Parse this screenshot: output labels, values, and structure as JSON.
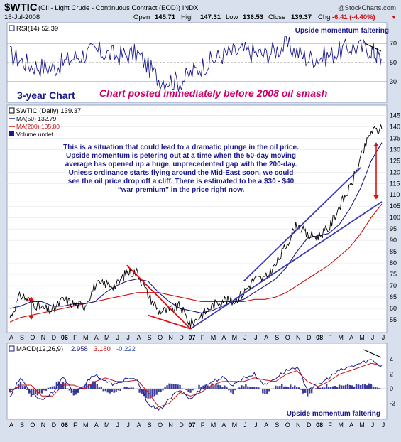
{
  "header": {
    "symbol": "$WTIC",
    "description": "(Oil - Light Crude - Continuous Contract (EOD)) INDX",
    "brand": "@StockCharts.com",
    "date": "15-Jul-2008",
    "open_label": "Open",
    "open": "145.71",
    "high_label": "High",
    "high": "147.31",
    "low_label": "Low",
    "low": "136.53",
    "close_label": "Close",
    "close": "139.37",
    "chg_label": "Chg",
    "chg": "-6.41 (-4.40%)",
    "chg_arrow": "▼"
  },
  "annotations": {
    "three_year": "3-year Chart",
    "posted": "Chart posted immediately before 2008 oil smash",
    "upside_top": "Upside momentum faltering",
    "upside_bottom": "Upside momentum faltering",
    "commentary": [
      "This is a situation that could lead to a dramatic plunge in the oil price.",
      "Upside momentum is petering out at a time when the 50-day moving",
      "average has opened up a huge, unprecedented gap with the 200-day.",
      "Unless ordinance starts flying around the Mid-East soon, we could",
      "see the oil price drop off a cliff. There is estimated to be a $30 - $40",
      "“war premium” in the price right now."
    ]
  },
  "colors": {
    "panel_bg": "#ffffff",
    "frame_bg": "#d8e0ee",
    "price": "#000000",
    "ma50": "#1a1a8c",
    "ma200": "#cc1111",
    "trend_blue": "#3a3ab8",
    "trend_red": "#dd1111",
    "text_blue": "#1a1a8c",
    "text_magenta": "#cc0066",
    "macd": "#1a1a8c",
    "signal": "#cc1111",
    "histogram": "#1a1a8c",
    "rsi_line": "#1a1a8c"
  },
  "chart_data": [
    {
      "type": "line",
      "panel": "rsi",
      "legend": [
        "RSI(14) 52.39"
      ],
      "ylim": [
        10,
        90
      ],
      "yticks": [
        "70",
        "50",
        "30"
      ],
      "reference_lines": [
        70,
        50,
        30
      ],
      "x": [
        "2005-08",
        "2005-10",
        "2005-12",
        "2006-02",
        "2006-04",
        "2006-06",
        "2006-08",
        "2006-10",
        "2006-12",
        "2007-02",
        "2007-04",
        "2007-06",
        "2007-08",
        "2007-10",
        "2007-12",
        "2008-02",
        "2008-04",
        "2008-06",
        "2008-07"
      ],
      "series": [
        {
          "name": "RSI(14)",
          "values": [
            58,
            47,
            44,
            55,
            62,
            57,
            59,
            33,
            30,
            46,
            58,
            62,
            58,
            68,
            54,
            57,
            66,
            64,
            52
          ]
        }
      ]
    },
    {
      "type": "line",
      "panel": "price",
      "legend": [
        "$WTIC (Daily) 139.37",
        "MA(50) 132.79",
        "MA(200) 105.80",
        "Volume undef"
      ],
      "ylim": [
        50,
        147
      ],
      "yticks": [
        "145",
        "140",
        "135",
        "130",
        "125",
        "120",
        "115",
        "110",
        "105",
        "100",
        "95",
        "90",
        "85",
        "80",
        "75",
        "70",
        "65",
        "60",
        "55"
      ],
      "x": [
        "2005-08",
        "2005-09",
        "2005-10",
        "2005-11",
        "2005-12",
        "2006-01",
        "2006-02",
        "2006-03",
        "2006-04",
        "2006-05",
        "2006-06",
        "2006-07",
        "2006-08",
        "2006-09",
        "2006-10",
        "2006-11",
        "2006-12",
        "2007-01",
        "2007-02",
        "2007-03",
        "2007-04",
        "2007-05",
        "2007-06",
        "2007-07",
        "2007-08",
        "2007-09",
        "2007-10",
        "2007-11",
        "2007-12",
        "2008-01",
        "2008-02",
        "2008-03",
        "2008-04",
        "2008-05",
        "2008-06",
        "2008-07"
      ],
      "series": [
        {
          "name": "$WTIC",
          "values": [
            56,
            66,
            63,
            60,
            59,
            64,
            62,
            61,
            70,
            71,
            70,
            76,
            76,
            66,
            59,
            59,
            61,
            53,
            57,
            61,
            64,
            63,
            67,
            73,
            73,
            79,
            88,
            97,
            92,
            92,
            95,
            105,
            113,
            126,
            138,
            139
          ]
        },
        {
          "name": "MA(50)",
          "values": [
            60,
            61,
            63,
            63,
            61,
            61,
            62,
            62,
            63,
            67,
            70,
            72,
            73,
            72,
            67,
            63,
            60,
            59,
            58,
            59,
            61,
            63,
            64,
            67,
            70,
            73,
            78,
            85,
            91,
            92,
            93,
            97,
            104,
            113,
            125,
            133
          ]
        },
        {
          "name": "MA(200)",
          "values": [
            54,
            56,
            57,
            58,
            59,
            60,
            61,
            62,
            63,
            64,
            65,
            66,
            67,
            67,
            67,
            66,
            65,
            64,
            63,
            63,
            63,
            63,
            63,
            64,
            64,
            65,
            67,
            70,
            73,
            76,
            79,
            83,
            87,
            93,
            100,
            106
          ]
        }
      ],
      "trendlines": [
        {
          "color": "blue",
          "from": [
            "2007-01",
            51
          ],
          "to": [
            "2008-07",
            107
          ]
        },
        {
          "color": "blue",
          "from": [
            "2007-06",
            72
          ],
          "to": [
            "2008-05",
            122
          ]
        },
        {
          "color": "red",
          "from": [
            "2006-07",
            79
          ],
          "to": [
            "2007-01",
            51
          ]
        },
        {
          "color": "red",
          "from": [
            "2006-09",
            57
          ],
          "to": [
            "2007-01",
            51
          ]
        }
      ],
      "arrows": [
        {
          "color": "red",
          "x": "2005-10",
          "from": 65,
          "to": 55
        },
        {
          "color": "red",
          "x": "2008-07",
          "from": 133,
          "to": 108
        }
      ]
    },
    {
      "type": "line",
      "panel": "macd",
      "legend": [
        "MACD(12,26,9)",
        "2.958",
        "3.180",
        "-0.222"
      ],
      "ylim": [
        -4,
        5
      ],
      "yticks": [
        "4",
        "2",
        "0",
        "-2"
      ],
      "x": [
        "2005-08",
        "2005-09",
        "2005-10",
        "2005-11",
        "2005-12",
        "2006-01",
        "2006-02",
        "2006-03",
        "2006-04",
        "2006-05",
        "2006-06",
        "2006-07",
        "2006-08",
        "2006-09",
        "2006-10",
        "2006-11",
        "2006-12",
        "2007-01",
        "2007-02",
        "2007-03",
        "2007-04",
        "2007-05",
        "2007-06",
        "2007-07",
        "2007-08",
        "2007-09",
        "2007-10",
        "2007-11",
        "2007-12",
        "2008-01",
        "2008-02",
        "2008-03",
        "2008-04",
        "2008-05",
        "2008-06",
        "2008-07"
      ],
      "series": [
        {
          "name": "MACD",
          "values": [
            -1,
            1.5,
            -0.5,
            -1.5,
            -0.5,
            1.5,
            -0.5,
            0.5,
            2,
            1,
            0.5,
            1.5,
            1,
            -2,
            -3,
            -1.5,
            0,
            -1.5,
            0,
            1,
            1.5,
            0.5,
            1.5,
            2,
            0.5,
            1.5,
            2.5,
            3,
            0,
            0.5,
            1.5,
            2.5,
            3,
            3.5,
            4,
            3
          ]
        },
        {
          "name": "Signal",
          "values": [
            -0.5,
            0.5,
            0.5,
            -1,
            -1,
            0.5,
            0.5,
            0,
            1,
            1.5,
            1,
            1,
            1.2,
            -0.5,
            -2.5,
            -2,
            -0.5,
            -1,
            -0.5,
            0.5,
            1,
            1,
            1,
            1.5,
            1.2,
            1,
            2,
            2.5,
            1,
            0.3,
            1,
            2,
            2.5,
            3,
            3.5,
            3.2
          ]
        },
        {
          "name": "Histogram",
          "values": [
            -0.5,
            1,
            -1,
            -0.5,
            0.5,
            1,
            -1,
            0.5,
            1,
            -0.5,
            -0.5,
            0.5,
            -0.2,
            -1.5,
            -0.5,
            0.5,
            0.5,
            -0.5,
            0.5,
            0.5,
            0.5,
            -0.5,
            0.5,
            0.5,
            -0.7,
            0.5,
            0.5,
            0.5,
            -1,
            0.2,
            0.5,
            0.5,
            0.5,
            0.5,
            0.5,
            -0.2
          ]
        }
      ]
    }
  ],
  "x_axis": {
    "labels": [
      "A",
      "S",
      "O",
      "N",
      "D",
      "06",
      "F",
      "M",
      "A",
      "M",
      "J",
      "J",
      "A",
      "S",
      "O",
      "N",
      "D",
      "07",
      "F",
      "M",
      "A",
      "M",
      "J",
      "J",
      "A",
      "S",
      "O",
      "N",
      "D",
      "08",
      "F",
      "M",
      "A",
      "M",
      "J",
      "J"
    ],
    "bold": [
      "06",
      "07",
      "08"
    ]
  }
}
